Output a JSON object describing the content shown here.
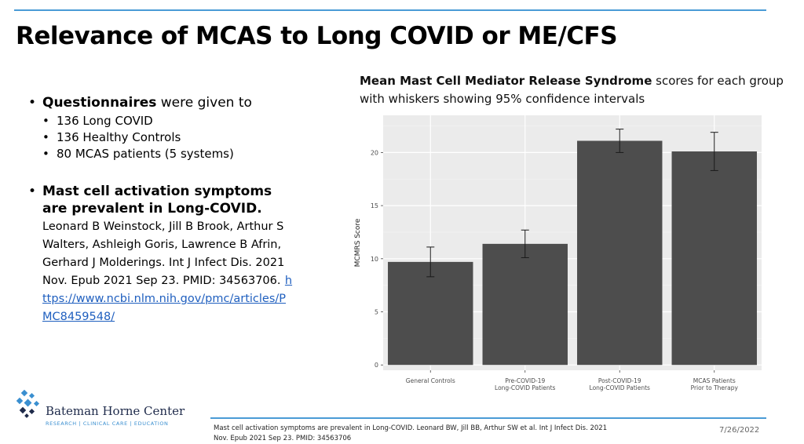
{
  "slide": {
    "title": "Relevance of MCAS to Long COVID or ME/CFS",
    "date": "7/26/2022"
  },
  "bullets": {
    "b1_bold": "Questionnaires",
    "b1_rest": " were given to",
    "sub_items": [
      "136 Long COVID",
      "136 Healthy Controls",
      "80 MCAS patients (5 systems)"
    ],
    "b2_bold": "Mast cell activation symptoms are prevalent in Long-COVID.",
    "b2_citation": "Leonard B Weinstock, Jill B Brook, Arthur S Walters, Ashleigh Goris, Lawrence B Afrin, Gerhard J Molderings.  Int J Infect Dis. 2021 Nov.  Epub 2021 Sep 23.  PMID: 34563706.",
    "link": "https://www.ncbi.nlm.nih.gov/pmc/articles/PMC8459548/"
  },
  "chart_caption": {
    "bold": "Mean Mast Cell Mediator Release Syndrome",
    "rest": " scores for each group with whiskers showing 95% confidence intervals"
  },
  "chart_data": {
    "type": "bar",
    "categories": [
      [
        "General Controls"
      ],
      [
        "Pre-COVID-19",
        "Long-COVID Patients"
      ],
      [
        "Post-COVID-19",
        "Long-COVID Patients"
      ],
      [
        "MCAS Patients",
        "Prior to Therapy"
      ]
    ],
    "values": [
      9.7,
      11.4,
      21.1,
      20.1
    ],
    "ci_low": [
      8.3,
      10.1,
      20.0,
      18.3
    ],
    "ci_high": [
      11.1,
      12.7,
      22.2,
      21.9
    ],
    "ylabel": "MCMRS Score",
    "xlabel": "",
    "ylim": [
      -0.5,
      23.5
    ],
    "yticks": [
      0,
      5,
      10,
      15,
      20
    ],
    "bar_color": "#4d4d4d",
    "panel_color": "#ebebeb",
    "grid": true
  },
  "footnote": "Mast cell activation symptoms are prevalent in Long-COVID.  Leonard BW, Jill BB, Arthur SW et al. Int J Infect Dis. 2021 Nov.  Epub 2021 Sep 23.  PMID: 34563706",
  "logo": {
    "name": "Bateman Horne Center",
    "tagline": "RESEARCH | CLINICAL CARE | EDUCATION"
  },
  "colors": {
    "accent": "#4a9bd6",
    "link": "#1f5fbf"
  }
}
